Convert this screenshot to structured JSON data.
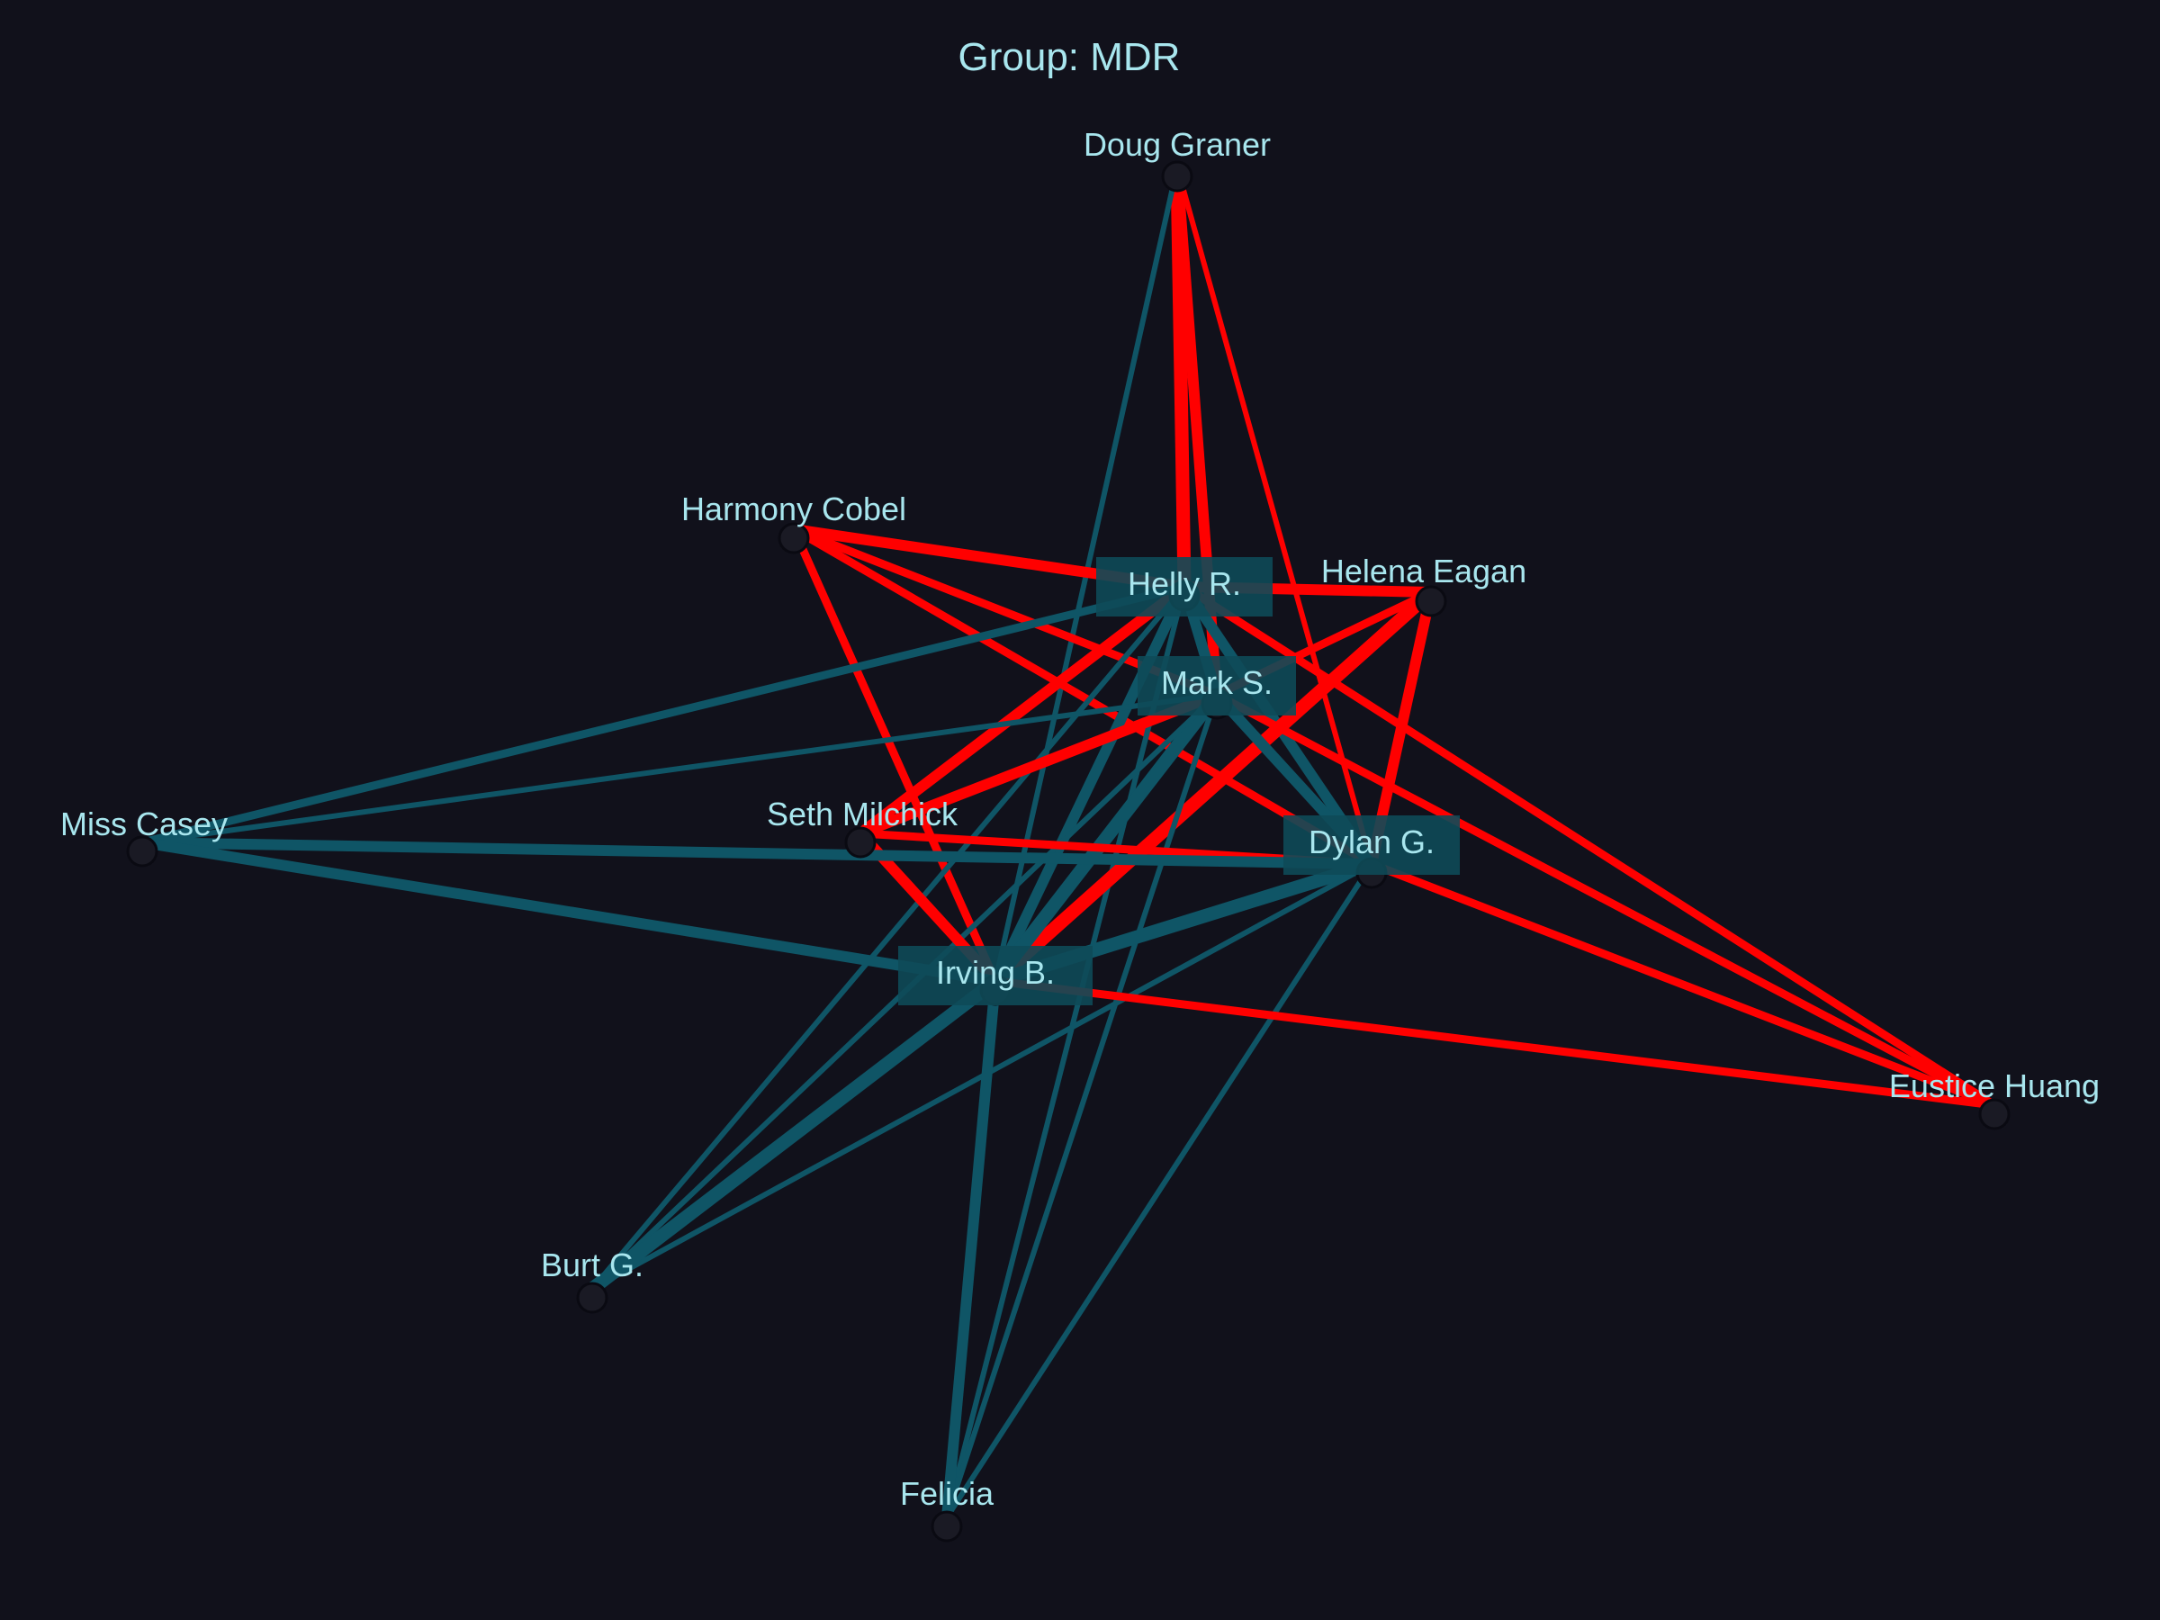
{
  "title": "Group: MDR",
  "colors": {
    "background": "#11111b",
    "text": "#a8e6ee",
    "edge_red": "#ff0000",
    "edge_teal": "#0f5566",
    "highlight_box": "#0e4a58"
  },
  "nodes": [
    {
      "id": "doug",
      "label": "Doug Graner",
      "highlight": false
    },
    {
      "id": "harmony",
      "label": "Harmony Cobel",
      "highlight": false
    },
    {
      "id": "helly",
      "label": "Helly R.",
      "highlight": true
    },
    {
      "id": "helena",
      "label": "Helena Eagan",
      "highlight": false
    },
    {
      "id": "mark",
      "label": "Mark S.",
      "highlight": true
    },
    {
      "id": "casey",
      "label": "Miss Casey",
      "highlight": false
    },
    {
      "id": "seth",
      "label": "Seth Milchick",
      "highlight": false
    },
    {
      "id": "dylan",
      "label": "Dylan G.",
      "highlight": true
    },
    {
      "id": "irving",
      "label": "Irving B.",
      "highlight": true
    },
    {
      "id": "eustice",
      "label": "Eustice Huang",
      "highlight": false
    },
    {
      "id": "burt",
      "label": "Burt G.",
      "highlight": false
    },
    {
      "id": "felicia",
      "label": "Felicia",
      "highlight": false
    }
  ],
  "edges": [
    {
      "source": "doug",
      "target": "helly",
      "type": "red",
      "weight": 5
    },
    {
      "source": "doug",
      "target": "mark",
      "type": "red",
      "weight": 4
    },
    {
      "source": "doug",
      "target": "dylan",
      "type": "red",
      "weight": 2
    },
    {
      "source": "doug",
      "target": "irving",
      "type": "teal",
      "weight": 2
    },
    {
      "source": "harmony",
      "target": "helly",
      "type": "red",
      "weight": 4
    },
    {
      "source": "harmony",
      "target": "mark",
      "type": "red",
      "weight": 3
    },
    {
      "source": "harmony",
      "target": "dylan",
      "type": "red",
      "weight": 3
    },
    {
      "source": "harmony",
      "target": "irving",
      "type": "red",
      "weight": 3
    },
    {
      "source": "helly",
      "target": "helena",
      "type": "red",
      "weight": 4
    },
    {
      "source": "helly",
      "target": "seth",
      "type": "red",
      "weight": 4
    },
    {
      "source": "helly",
      "target": "eustice",
      "type": "red",
      "weight": 3
    },
    {
      "source": "helly",
      "target": "casey",
      "type": "teal",
      "weight": 3
    },
    {
      "source": "helly",
      "target": "dylan",
      "type": "teal",
      "weight": 4
    },
    {
      "source": "helly",
      "target": "irving",
      "type": "teal",
      "weight": 4
    },
    {
      "source": "helly",
      "target": "burt",
      "type": "teal",
      "weight": 2
    },
    {
      "source": "helly",
      "target": "felicia",
      "type": "teal",
      "weight": 2
    },
    {
      "source": "helly",
      "target": "mark",
      "type": "teal",
      "weight": 4
    },
    {
      "source": "helena",
      "target": "mark",
      "type": "red",
      "weight": 3
    },
    {
      "source": "helena",
      "target": "dylan",
      "type": "red",
      "weight": 4
    },
    {
      "source": "helena",
      "target": "irving",
      "type": "red",
      "weight": 5
    },
    {
      "source": "mark",
      "target": "seth",
      "type": "red",
      "weight": 4
    },
    {
      "source": "mark",
      "target": "eustice",
      "type": "red",
      "weight": 3
    },
    {
      "source": "mark",
      "target": "casey",
      "type": "teal",
      "weight": 2
    },
    {
      "source": "mark",
      "target": "dylan",
      "type": "teal",
      "weight": 4
    },
    {
      "source": "mark",
      "target": "irving",
      "type": "teal",
      "weight": 5
    },
    {
      "source": "mark",
      "target": "burt",
      "type": "teal",
      "weight": 2
    },
    {
      "source": "mark",
      "target": "felicia",
      "type": "teal",
      "weight": 2
    },
    {
      "source": "seth",
      "target": "dylan",
      "type": "red",
      "weight": 3
    },
    {
      "source": "seth",
      "target": "irving",
      "type": "red",
      "weight": 4
    },
    {
      "source": "casey",
      "target": "dylan",
      "type": "teal",
      "weight": 4
    },
    {
      "source": "casey",
      "target": "irving",
      "type": "teal",
      "weight": 4
    },
    {
      "source": "dylan",
      "target": "irving",
      "type": "teal",
      "weight": 5
    },
    {
      "source": "dylan",
      "target": "burt",
      "type": "teal",
      "weight": 2
    },
    {
      "source": "dylan",
      "target": "felicia",
      "type": "teal",
      "weight": 2
    },
    {
      "source": "dylan",
      "target": "eustice",
      "type": "red",
      "weight": 3
    },
    {
      "source": "irving",
      "target": "eustice",
      "type": "red",
      "weight": 3
    },
    {
      "source": "irving",
      "target": "burt",
      "type": "teal",
      "weight": 5
    },
    {
      "source": "irving",
      "target": "felicia",
      "type": "teal",
      "weight": 4
    }
  ]
}
